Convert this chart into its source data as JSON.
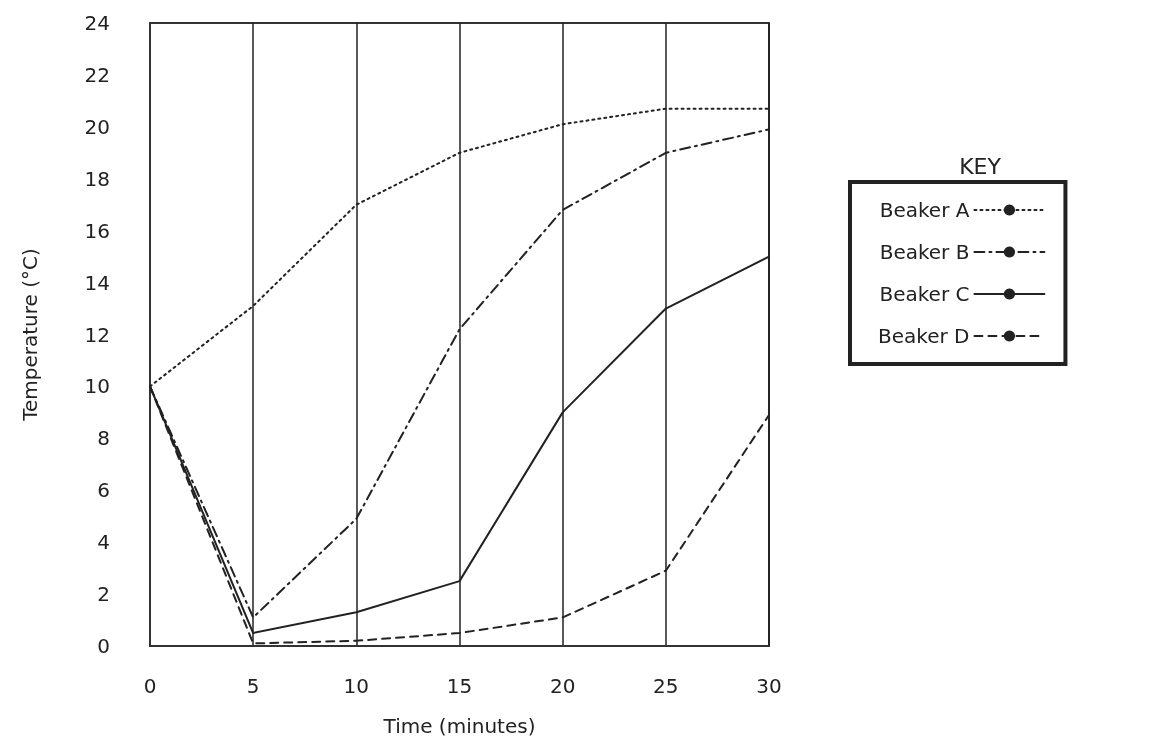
{
  "chart_data": {
    "type": "line",
    "xlabel": "Time (minutes)",
    "ylabel": "Temperature (°C)",
    "legend_title": "KEY",
    "x": [
      0,
      5,
      10,
      15,
      20,
      25,
      30
    ],
    "series": [
      {
        "name": "Beaker A",
        "color": "#222222",
        "line_style": "dotted",
        "values": [
          10,
          13.1,
          17.0,
          19.0,
          20.1,
          20.7,
          20.7
        ]
      },
      {
        "name": "Beaker B",
        "color": "#222222",
        "line_style": "dashdot",
        "values": [
          10,
          1.1,
          4.9,
          12.2,
          16.8,
          19.0,
          19.9
        ]
      },
      {
        "name": "Beaker C",
        "color": "#222222",
        "line_style": "solid",
        "values": [
          10,
          0.5,
          1.3,
          2.5,
          9.0,
          13.0,
          15.0
        ]
      },
      {
        "name": "Beaker D",
        "color": "#222222",
        "line_style": "dashed",
        "values": [
          10,
          0.1,
          0.2,
          0.5,
          1.1,
          2.9,
          8.9
        ]
      }
    ],
    "xlim": [
      0,
      30
    ],
    "xticks": [
      0,
      5,
      10,
      15,
      20,
      25,
      30
    ],
    "ylim": [
      0,
      24
    ],
    "yticks": [
      0,
      2,
      4,
      6,
      8,
      10,
      12,
      14,
      16,
      18,
      20,
      22,
      24
    ],
    "grid": "x",
    "legend": "right",
    "marker": "none"
  }
}
